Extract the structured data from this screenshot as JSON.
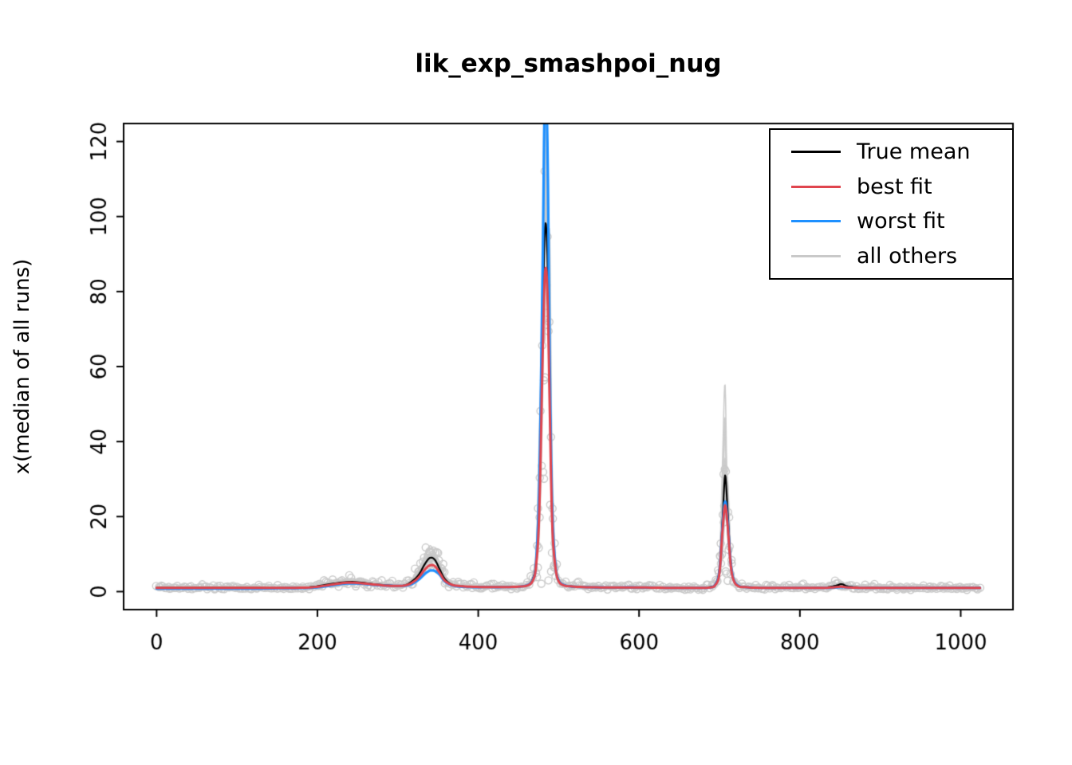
{
  "chart_data": {
    "type": "line",
    "title": "lik_exp_smashpoi_nug",
    "xlabel": "",
    "ylabel": "x(median of all runs)",
    "xlim": [
      -41,
      1065
    ],
    "ylim": [
      0,
      120
    ],
    "xticks": [
      0,
      200,
      400,
      600,
      800,
      1000
    ],
    "yticks": [
      0,
      20,
      40,
      60,
      80,
      100,
      120
    ],
    "grid": false,
    "frame": true,
    "legend": {
      "position": "top-right",
      "entries": [
        {
          "label": "True mean",
          "color": "#000000"
        },
        {
          "label": "best fit",
          "color": "#e0454e"
        },
        {
          "label": "worst fit",
          "color": "#1e90ff"
        },
        {
          "label": "all others",
          "color": "#c9c9c9"
        }
      ]
    },
    "x": [
      0,
      40,
      80,
      120,
      160,
      190,
      210,
      225,
      240,
      255,
      270,
      285,
      300,
      310,
      318,
      326,
      334,
      340,
      346,
      352,
      358,
      366,
      375,
      390,
      410,
      430,
      450,
      462,
      468,
      472,
      476,
      480,
      483,
      486,
      489,
      492,
      496,
      500,
      506,
      515,
      530,
      560,
      600,
      640,
      670,
      688,
      695,
      700,
      704,
      707,
      710,
      714,
      718,
      724,
      732,
      750,
      790,
      830,
      845,
      852,
      860,
      880,
      920,
      960,
      1000,
      1024
    ],
    "series": [
      {
        "name": "True mean",
        "color": "#000000",
        "values": [
          1,
          1,
          1,
          1,
          1,
          1.2,
          1.8,
          2.3,
          2.6,
          2.4,
          2,
          1.7,
          1.5,
          1.8,
          2.8,
          4.5,
          7.5,
          9,
          8.5,
          6,
          3.5,
          2,
          1.5,
          1.3,
          1.2,
          1.2,
          1.3,
          1.8,
          3.5,
          8,
          25,
          70,
          97,
          90,
          55,
          20,
          7,
          3,
          1.8,
          1.4,
          1.2,
          1.1,
          1.1,
          1,
          1,
          1.2,
          2,
          6,
          20,
          31,
          22,
          8,
          3,
          1.5,
          1.2,
          1,
          1,
          1.1,
          1.6,
          2,
          1.4,
          1.1,
          1,
          1,
          1,
          1
        ]
      },
      {
        "name": "best fit",
        "color": "#e0454e",
        "values": [
          1,
          1,
          1,
          1,
          1,
          1.1,
          1.6,
          2.1,
          2.4,
          2.2,
          1.9,
          1.6,
          1.5,
          1.7,
          2.4,
          3.8,
          6,
          7,
          6.8,
          5,
          3,
          1.9,
          1.5,
          1.3,
          1.2,
          1.2,
          1.3,
          1.7,
          3,
          7,
          22,
          62,
          85,
          80,
          48,
          18,
          6.5,
          2.8,
          1.7,
          1.4,
          1.2,
          1.1,
          1.1,
          1,
          1,
          1.1,
          1.8,
          5,
          17,
          23,
          18,
          7,
          2.8,
          1.4,
          1.2,
          1,
          1,
          1,
          1.2,
          1.3,
          1.1,
          1,
          1,
          1,
          1,
          1
        ]
      },
      {
        "name": "worst fit",
        "color": "#1e90ff",
        "values": [
          0.8,
          0.8,
          0.8,
          0.8,
          0.9,
          1,
          1.4,
          1.9,
          2.2,
          2.1,
          1.8,
          1.6,
          1.5,
          1.6,
          2.1,
          3.2,
          4.8,
          5.6,
          5.5,
          4.5,
          2.8,
          1.8,
          1.4,
          1.2,
          1.2,
          1.2,
          1.3,
          1.8,
          3.2,
          8,
          30,
          85,
          135,
          120,
          60,
          22,
          7,
          3,
          1.8,
          1.4,
          1.2,
          1.1,
          1.1,
          1,
          1,
          1.1,
          1.9,
          5.5,
          18,
          24,
          19,
          7.5,
          3,
          1.5,
          1.2,
          1,
          1,
          1,
          1.1,
          1.2,
          1.1,
          1,
          1,
          1,
          1,
          1
        ]
      }
    ],
    "scatter": {
      "name": "all others (observations)",
      "color": "#c9c9c9",
      "marker": "open-circle",
      "n": 500,
      "seed": 42,
      "noise_sd": 0.28
    },
    "others_lines": {
      "count": 9,
      "color": "#cccccc"
    }
  }
}
